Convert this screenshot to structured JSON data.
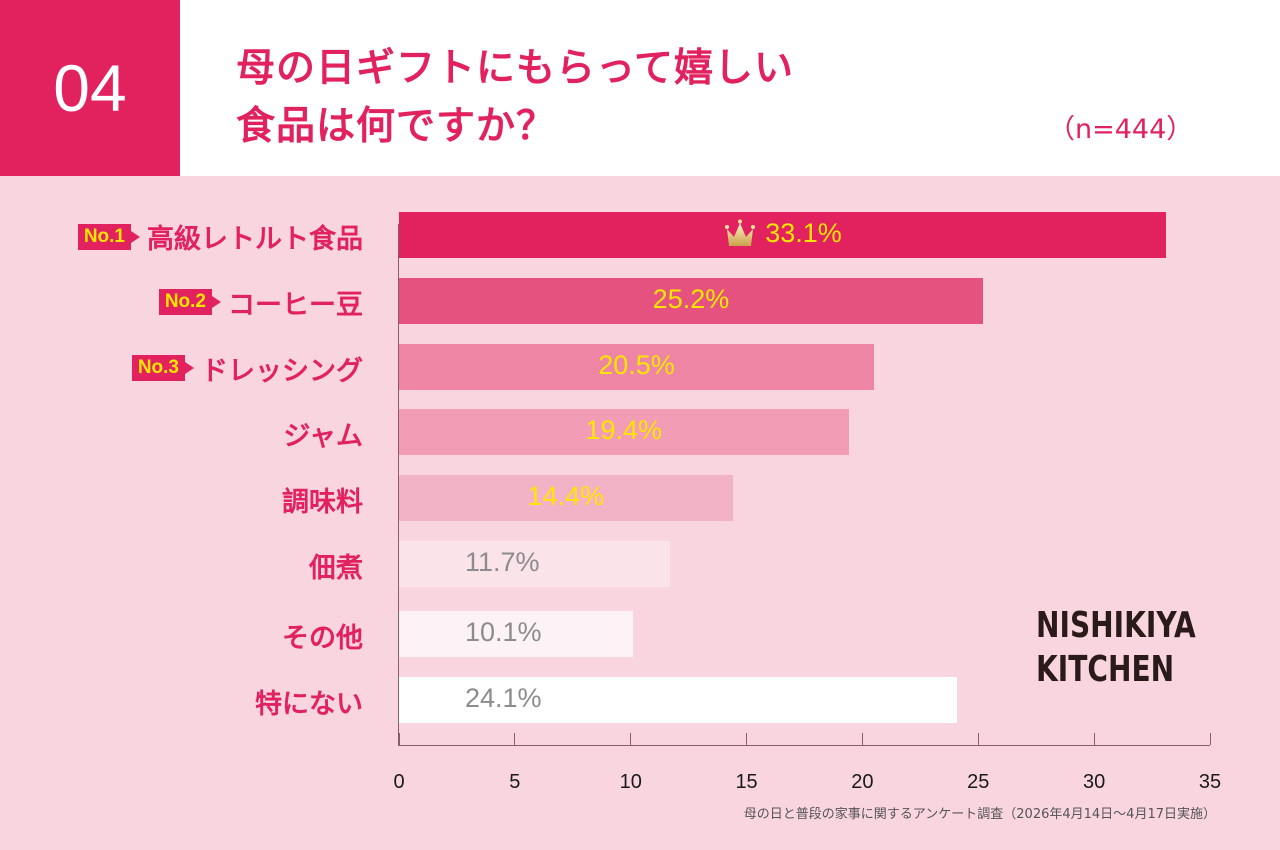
{
  "header": {
    "question_number": "04",
    "title_line1": "母の日ギフトにもらって嬉しい",
    "title_line2": "食品は何ですか？",
    "sample_size": "（n=444）"
  },
  "colors": {
    "accent": "#e2215f",
    "rank_text": "#ffe600",
    "background": "#f8d5df"
  },
  "chart_data": {
    "type": "bar",
    "orientation": "horizontal",
    "title": "母の日ギフトにもらって嬉しい食品は何ですか？",
    "categories": [
      "高級レトルト食品",
      "コーヒー豆",
      "ドレッシング",
      "ジャム",
      "調味料",
      "佃煮",
      "その他",
      "特にない"
    ],
    "values": [
      33.1,
      25.2,
      20.5,
      19.4,
      14.4,
      11.7,
      10.1,
      24.1
    ],
    "value_labels": [
      "33.1%",
      "25.2%",
      "20.5%",
      "19.4%",
      "14.4%",
      "11.7%",
      "10.1%",
      "24.1%"
    ],
    "ranks": [
      "No.1",
      "No.2",
      "No.3",
      null,
      null,
      null,
      null,
      null
    ],
    "bar_colors": [
      "#e2215f",
      "#e5527f",
      "#ee85a5",
      "#f29cb5",
      "#f2b3c6",
      "#fbe3ea",
      "#fdf3f6",
      "#ffffff"
    ],
    "label_colors": [
      "#ffe600",
      "#ffe600",
      "#ffe600",
      "#ffe600",
      "#ffe600",
      "#8c8c8c",
      "#8c8c8c",
      "#8c8c8c"
    ],
    "crown_on": 0,
    "xlim": [
      0,
      35
    ],
    "xticks": [
      0,
      5,
      10,
      15,
      20,
      25,
      30,
      35
    ],
    "xtick_labels": [
      "0",
      "5",
      "10",
      "15",
      "20",
      "25",
      "30",
      "35"
    ],
    "xlabel": "",
    "ylabel": "",
    "grid": false,
    "sample_size": "（n=444）"
  },
  "logo": {
    "line1": "NISHIKIYA",
    "line2": "KITCHEN"
  },
  "source": "母の日と普段の家事に関するアンケート調査（2026年4月14日〜4月17日実施）"
}
